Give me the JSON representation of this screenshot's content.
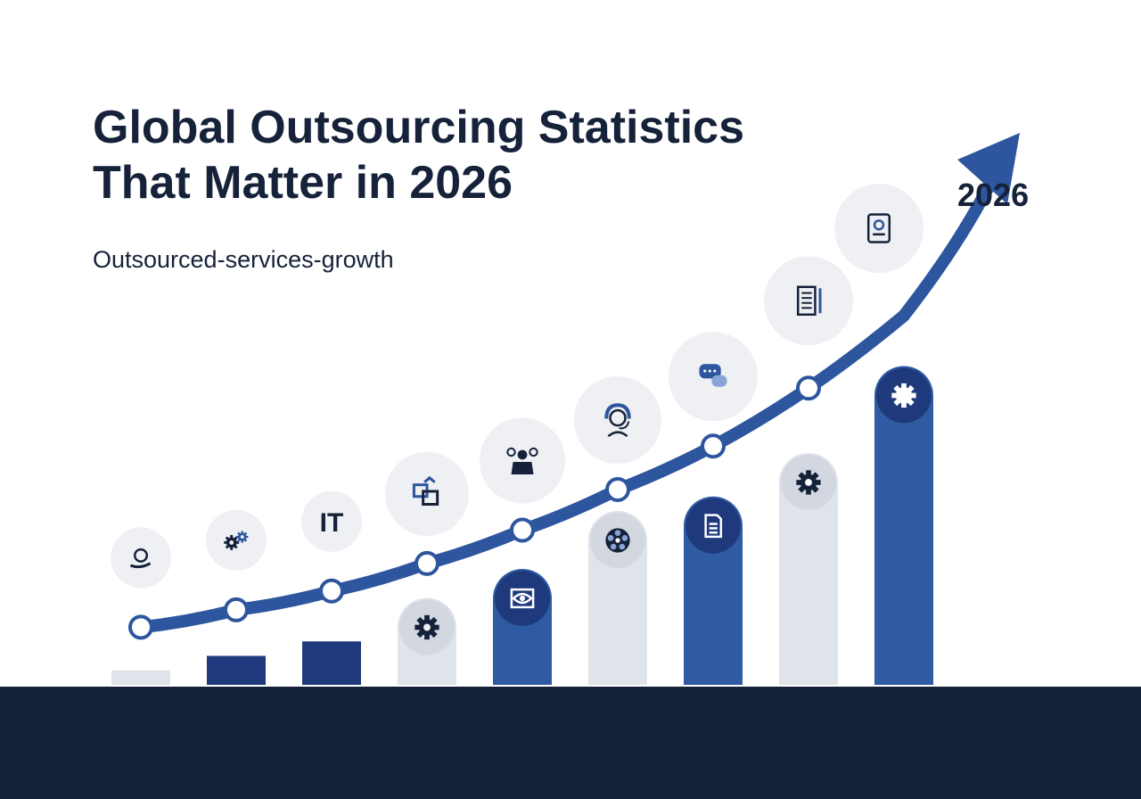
{
  "header": {
    "title_line1": "Global Outsourcing Statistics",
    "title_line2": "That Matter in 2026",
    "subtitle": "Outsourced-services-growth",
    "year_label": "2026"
  },
  "colors": {
    "navy": "#16223a",
    "blue_dark": "#1f3a7c",
    "blue_mid": "#2d569e",
    "blue_bar": "#2f5ba3",
    "light_gray": "#dfe3ea",
    "icon_circle": "#eef0f4",
    "arrow": "#2d569e"
  },
  "chart_data": {
    "type": "bar",
    "title": "",
    "categories": [
      "",
      "",
      "",
      "",
      "",
      "",
      "",
      "",
      ""
    ],
    "values": [
      1,
      2,
      3,
      6,
      8,
      12,
      13,
      16,
      22
    ],
    "ylim": [
      0,
      24
    ],
    "bar_styles": [
      "light",
      "dark",
      "dark",
      "light",
      "blue",
      "light",
      "blue",
      "light",
      "blue"
    ],
    "bar_icons": [
      "",
      "",
      "",
      "gear-ring-icon",
      "eye-icon",
      "network-icon",
      "document-icon",
      "gear-icon",
      "gear-icon"
    ],
    "trend_series": {
      "values": [
        2.5,
        3.7,
        5.0,
        6.9,
        9.2,
        12.0,
        15.0,
        19.0,
        24.0
      ],
      "arrow_end_label": "2026"
    },
    "category_icons": [
      {
        "icon": "hand-coin-icon",
        "text": ""
      },
      {
        "icon": "gears-icon",
        "text": ""
      },
      {
        "icon": "it-label-icon",
        "text": "IT"
      },
      {
        "icon": "layers-icon",
        "text": ""
      },
      {
        "icon": "team-icon",
        "text": ""
      },
      {
        "icon": "headset-agent-icon",
        "text": ""
      },
      {
        "icon": "chat-bubbles-icon",
        "text": ""
      },
      {
        "icon": "report-document-icon",
        "text": ""
      },
      {
        "icon": "resume-document-icon",
        "text": ""
      }
    ],
    "grid": false,
    "legend": "none"
  }
}
